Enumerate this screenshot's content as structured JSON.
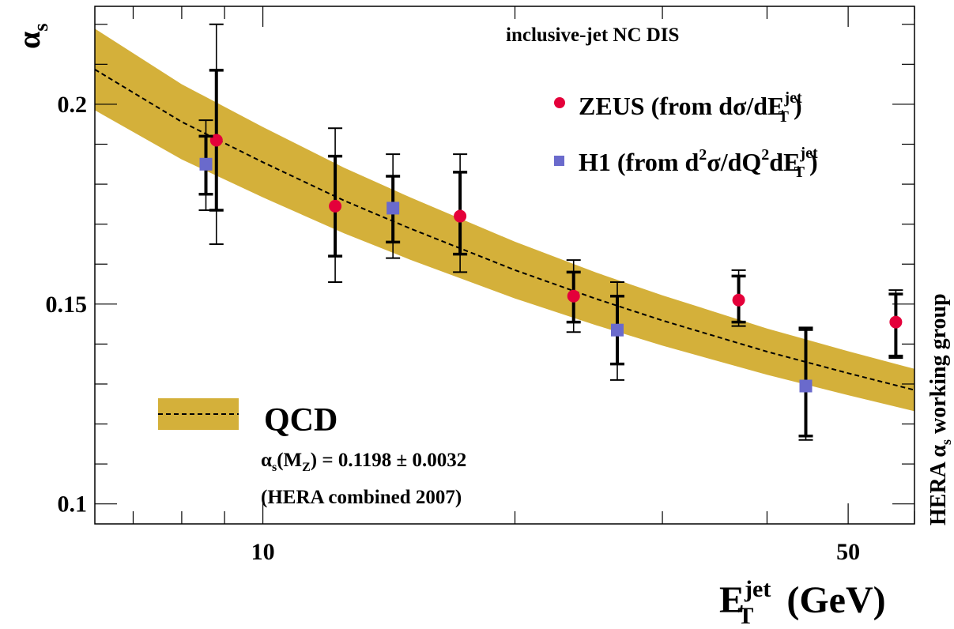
{
  "chart_data": {
    "type": "scatter",
    "x_scale": "log",
    "xlim": [
      6.3,
      60
    ],
    "ylim": [
      0.095,
      0.2245
    ],
    "x_ticks": [
      {
        "value": 10,
        "label": "10"
      },
      {
        "value": 50,
        "label": "50"
      }
    ],
    "y_ticks": [
      {
        "value": 0.1,
        "label": "0.1"
      },
      {
        "value": 0.15,
        "label": "0.15"
      },
      {
        "value": 0.2,
        "label": "0.2"
      }
    ],
    "x_label": {
      "main": "E",
      "sup": "jet",
      "sub": "T",
      "tail": " (GeV)"
    },
    "y_label": {
      "main": "α",
      "sub": "s"
    },
    "side_label": {
      "prefix": "HERA α",
      "sub": "s",
      "suffix": " working group"
    },
    "title": "inclusive-jet NC DIS",
    "legend_placement": "top-right",
    "series": [
      {
        "name": {
          "main": "ZEUS (from dσ/dE",
          "sup": "jet",
          "sub": "T",
          "tail": ")"
        },
        "marker": "circle",
        "color": "#e4003a",
        "points": [
          {
            "x": 8.8,
            "y": 0.191,
            "stat": [
              0.0175,
              0.0175
            ],
            "total": [
              0.029,
              0.026
            ]
          },
          {
            "x": 12.2,
            "y": 0.1745,
            "stat": [
              0.0125,
              0.0125
            ],
            "total": [
              0.0195,
              0.019
            ]
          },
          {
            "x": 17.2,
            "y": 0.172,
            "stat": [
              0.011,
              0.0095
            ],
            "total": [
              0.0155,
              0.014
            ]
          },
          {
            "x": 23.5,
            "y": 0.152,
            "stat": [
              0.006,
              0.0065
            ],
            "total": [
              0.009,
              0.009
            ]
          },
          {
            "x": 37.0,
            "y": 0.151,
            "stat": [
              0.006,
              0.0055
            ],
            "total": [
              0.0075,
              0.0065
            ]
          },
          {
            "x": 57.0,
            "y": 0.1455,
            "stat": [
              0.007,
              0.0085
            ],
            "total": [
              0.008,
              0.009
            ]
          }
        ]
      },
      {
        "name": {
          "main": "H1 (from d",
          "sup1": "2",
          "mid": "σ/dQ",
          "sup2": "2",
          "mid2": "dE",
          "sup": "jet",
          "sub": "T",
          "tail": ")"
        },
        "marker": "square",
        "color": "#6a6acc",
        "points": [
          {
            "x": 8.55,
            "y": 0.185,
            "stat": [
              0.007,
              0.0075
            ],
            "total": [
              0.011,
              0.0115
            ]
          },
          {
            "x": 14.3,
            "y": 0.174,
            "stat": [
              0.008,
              0.0085
            ],
            "total": [
              0.0135,
              0.0125
            ]
          },
          {
            "x": 26.5,
            "y": 0.1435,
            "stat": [
              0.0085,
              0.0085
            ],
            "total": [
              0.012,
              0.0125
            ]
          },
          {
            "x": 44.5,
            "y": 0.1295,
            "stat": [
              0.0145,
              0.0125
            ],
            "total": [
              0.014,
              0.0135
            ]
          }
        ]
      }
    ],
    "qcd_band": {
      "color": "#d4b03a",
      "x": [
        6.3,
        8,
        10,
        12.5,
        15,
        20,
        25,
        30,
        40,
        50,
        60
      ],
      "central": [
        0.2087,
        0.1956,
        0.1855,
        0.1759,
        0.1689,
        0.1585,
        0.1513,
        0.1459,
        0.1381,
        0.1327,
        0.1285
      ],
      "half_width": [
        0.0102,
        0.0094,
        0.0088,
        0.0082,
        0.0078,
        0.0071,
        0.0066,
        0.0063,
        0.0058,
        0.0055,
        0.0053
      ]
    },
    "qcd_legend": {
      "label": "QCD",
      "line1": {
        "a": "α",
        "sub1": "s",
        "b": "(M",
        "sub2": "Z",
        "c": ") = 0.1198 ± 0.0032"
      },
      "line2": "(HERA combined 2007)"
    }
  }
}
